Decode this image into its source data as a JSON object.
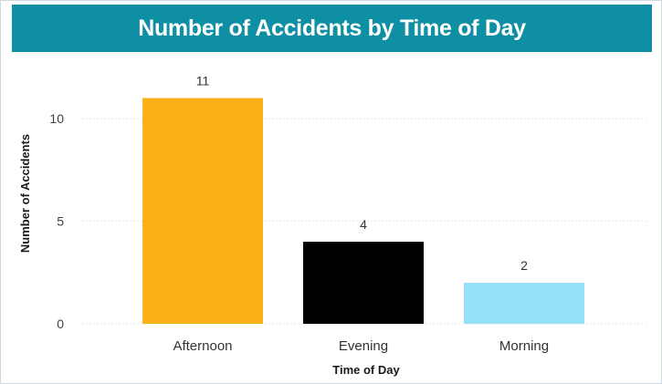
{
  "colors": {
    "title_bg": "#0f8fa3",
    "title_text": "#ffffff",
    "gridline": "#e6e6e6",
    "bar_colors": [
      "#fbb117",
      "#000000",
      "#93e0f7"
    ]
  },
  "chart_data": {
    "type": "bar",
    "title": "Number of Accidents by Time of Day",
    "xlabel": "Time of Day",
    "ylabel": "Number of Accidents",
    "categories": [
      "Afternoon",
      "Evening",
      "Morning"
    ],
    "values": [
      11,
      4,
      2
    ],
    "data_labels": [
      "11",
      "4",
      "2"
    ],
    "ylim": [
      0,
      12
    ],
    "yticks": [
      "0",
      "5",
      "10"
    ],
    "grid": true,
    "legend": "none"
  }
}
